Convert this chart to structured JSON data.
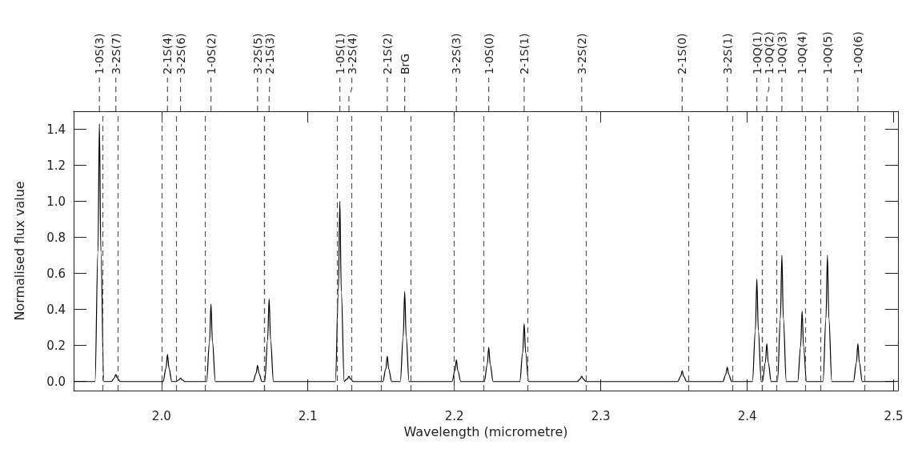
{
  "chart_data": {
    "type": "line",
    "xlabel": "Wavelength (micrometre)",
    "ylabel": "Normalised flux value",
    "xlim": [
      1.94,
      2.503
    ],
    "xticks": [
      {
        "value": 2,
        "label": "2.0"
      },
      2.1,
      2.2,
      2.3,
      2.4,
      2.5
    ],
    "ylim": [
      -0.05,
      1.5
    ],
    "yticks": [
      {
        "value": 0,
        "label": "0.0"
      },
      0.2,
      0.4,
      0.6,
      0.8,
      {
        "value": 1,
        "label": "1.0"
      },
      1.2,
      1.4
    ],
    "marker": "none",
    "line_style": "solid",
    "series": [
      {
        "color": "#000000",
        "x": [
          1.94,
          1.9546,
          1.9566,
          1.9576,
          1.9586,
          1.9606,
          1.9658,
          1.9678,
          1.9688,
          1.9698,
          1.9718,
          2.0011,
          2.0031,
          2.0041,
          2.0051,
          2.0071,
          2.01,
          2.012,
          2.013,
          2.014,
          2.016,
          2.0308,
          2.0328,
          2.0338,
          2.0348,
          2.0368,
          2.0626,
          2.0646,
          2.0656,
          2.0666,
          2.0686,
          2.0705,
          2.0725,
          2.0735,
          2.0745,
          2.0765,
          2.1188,
          2.1208,
          2.1218,
          2.1228,
          2.1248,
          2.125,
          2.127,
          2.128,
          2.129,
          2.131,
          2.1512,
          2.1532,
          2.1542,
          2.1552,
          2.1572,
          2.1631,
          2.1651,
          2.1661,
          2.1671,
          2.1691,
          2.1984,
          2.2004,
          2.2014,
          2.2024,
          2.2044,
          2.2205,
          2.2225,
          2.2235,
          2.2245,
          2.2265,
          2.2447,
          2.2467,
          2.2477,
          2.2487,
          2.2507,
          2.284,
          2.286,
          2.287,
          2.288,
          2.29,
          2.3526,
          2.3546,
          2.3556,
          2.3566,
          2.3586,
          2.3834,
          2.3854,
          2.3864,
          2.3874,
          2.3894,
          2.4036,
          2.4056,
          2.4066,
          2.4076,
          2.4096,
          2.4104,
          2.4124,
          2.4134,
          2.4144,
          2.4164,
          2.4207,
          2.4227,
          2.4237,
          2.4247,
          2.4267,
          2.4345,
          2.4365,
          2.4375,
          2.4385,
          2.4405,
          2.4518,
          2.4538,
          2.4548,
          2.4558,
          2.4578,
          2.4726,
          2.4746,
          2.4756,
          2.4766,
          2.4786,
          2.5
        ],
        "values": [
          0,
          0,
          0.72,
          1.43,
          0.72,
          0,
          0,
          0.02,
          0.04,
          0.02,
          0,
          0,
          0.075,
          0.15,
          0.075,
          0,
          0,
          0.01,
          0.02,
          0.01,
          0,
          0,
          0.22,
          0.43,
          0.22,
          0,
          0,
          0.045,
          0.09,
          0.045,
          0,
          0,
          0.23,
          0.46,
          0.23,
          0,
          0,
          0.5,
          1.0,
          0.5,
          0,
          0,
          0.015,
          0.03,
          0.015,
          0,
          0,
          0.07,
          0.14,
          0.07,
          0,
          0,
          0.25,
          0.5,
          0.25,
          0,
          0,
          0.06,
          0.12,
          0.06,
          0,
          0,
          0.095,
          0.19,
          0.095,
          0,
          0,
          0.16,
          0.32,
          0.16,
          0,
          0,
          0.015,
          0.03,
          0.015,
          0,
          0,
          0.03,
          0.06,
          0.03,
          0,
          0,
          0.04,
          0.08,
          0.04,
          0,
          0,
          0.285,
          0.57,
          0.285,
          0,
          0,
          0.105,
          0.21,
          0.105,
          0,
          0,
          0.35,
          0.7,
          0.35,
          0,
          0,
          0.195,
          0.39,
          0.195,
          0,
          0,
          0.35,
          0.7,
          0.35,
          0,
          0,
          0.105,
          0.21,
          0.105,
          0,
          0
        ]
      }
    ],
    "ref_lines": [
      {
        "axis": "x",
        "value": 1.9576,
        "label": "1-0S(3)",
        "line_style": "dashed",
        "color": "#555555"
      },
      {
        "axis": "x",
        "value": 1.9688,
        "label": "3-2S(7)",
        "line_style": "dashed",
        "color": "#555555"
      },
      {
        "axis": "x",
        "value": 2.0041,
        "label": "2-1S(4)",
        "line_style": "dashed",
        "color": "#555555"
      },
      {
        "axis": "x",
        "value": 2.013,
        "label": "3-2S(6)",
        "line_style": "dashed",
        "color": "#555555"
      },
      {
        "axis": "x",
        "value": 2.0338,
        "label": "1-0S(2)",
        "line_style": "dashed",
        "color": "#555555"
      },
      {
        "axis": "x",
        "value": 2.0656,
        "label": "3-2S(5)",
        "line_style": "dashed",
        "color": "#555555"
      },
      {
        "axis": "x",
        "value": 2.0735,
        "label": "2-1S(3)",
        "line_style": "dashed",
        "color": "#555555"
      },
      {
        "axis": "x",
        "value": 2.1218,
        "label": "1-0S(1)",
        "line_style": "dashed",
        "color": "#555555"
      },
      {
        "axis": "x",
        "value": 2.128,
        "label": "3-2S(4)",
        "line_style": "dashed",
        "color": "#555555"
      },
      {
        "axis": "x",
        "value": 2.1542,
        "label": "2-1S(2)",
        "line_style": "dashed",
        "color": "#555555"
      },
      {
        "axis": "x",
        "value": 2.1661,
        "label": "BrG",
        "line_style": "dashed",
        "color": "#555555"
      },
      {
        "axis": "x",
        "value": 2.2014,
        "label": "3-2S(3)",
        "line_style": "dashed",
        "color": "#555555"
      },
      {
        "axis": "x",
        "value": 2.2235,
        "label": "1-0S(0)",
        "line_style": "dashed",
        "color": "#555555"
      },
      {
        "axis": "x",
        "value": 2.2477,
        "label": "2-1S(1)",
        "line_style": "dashed",
        "color": "#555555"
      },
      {
        "axis": "x",
        "value": 2.287,
        "label": "3-2S(2)",
        "line_style": "dashed",
        "color": "#555555"
      },
      {
        "axis": "x",
        "value": 2.3556,
        "label": "2-1S(0)",
        "line_style": "dashed",
        "color": "#555555"
      },
      {
        "axis": "x",
        "value": 2.3864,
        "label": "3-2S(1)",
        "line_style": "dashed",
        "color": "#555555"
      },
      {
        "axis": "x",
        "value": 2.4066,
        "label": "1-0Q(1)",
        "line_style": "dashed",
        "color": "#555555"
      },
      {
        "axis": "x",
        "value": 2.4134,
        "label": "1-0Q(2)",
        "line_style": "dashed",
        "color": "#555555"
      },
      {
        "axis": "x",
        "value": 2.4237,
        "label": "1-0Q(3)",
        "line_style": "dashed",
        "color": "#555555"
      },
      {
        "axis": "x",
        "value": 2.4375,
        "label": "1-0Q(4)",
        "line_style": "dashed",
        "color": "#555555"
      },
      {
        "axis": "x",
        "value": 2.4548,
        "label": "1-0Q(5)",
        "line_style": "dashed",
        "color": "#555555"
      },
      {
        "axis": "x",
        "value": 2.4756,
        "label": "1-0Q(6)",
        "line_style": "dashed",
        "color": "#555555"
      }
    ]
  }
}
